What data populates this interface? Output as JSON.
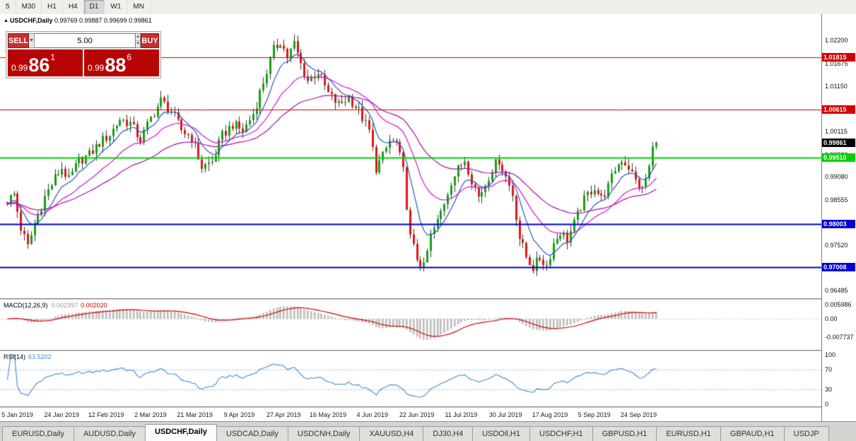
{
  "toolbar": {
    "timeframes": [
      "5",
      "M30",
      "H1",
      "H4",
      "D1",
      "W1",
      "MN"
    ],
    "active": "D1"
  },
  "icons": {
    "dropdown": "▼",
    "spin_up": "▲",
    "spin_down": "▼",
    "symbol_marker": "▲"
  },
  "trade_panel": {
    "sell_label": "SELL",
    "buy_label": "BUY",
    "volume": "5.00",
    "sell_price": {
      "prefix": "0.99",
      "big": "86",
      "sup": "1"
    },
    "buy_price": {
      "prefix": "0.99",
      "big": "88",
      "sup": "6"
    }
  },
  "tabs": {
    "items": [
      "EURUSD,Daily",
      "AUDUSD,Daily",
      "USDCHF,Daily",
      "USDCAD,Daily",
      "USDCNH,Daily",
      "XAUUSD,H4",
      "DJ30,H4",
      "USDOil,H1",
      "USDCHF,H1",
      "GBPUSD,H1",
      "EURUSD,H1",
      "GBPAUD,H1",
      "USDJP"
    ],
    "active_index": 2
  },
  "chart_data": [
    {
      "type": "candlestick",
      "title_icon": "▲",
      "symbol": "USDCHF,Daily",
      "ohlc_text": "0.99769 0.99887 0.99699 0.99861",
      "open": 0.99769,
      "high": 0.99887,
      "low": 0.99699,
      "close": 0.99861,
      "num_candles": 191,
      "price_top": 1.028,
      "price_bottom": 0.963,
      "anchors": [
        [
          0,
          0.9853
        ],
        [
          2,
          0.9868
        ],
        [
          4,
          0.979
        ],
        [
          6,
          0.9748
        ],
        [
          8,
          0.98
        ],
        [
          11,
          0.9862
        ],
        [
          14,
          0.9905
        ],
        [
          16,
          0.9928
        ],
        [
          18,
          0.99
        ],
        [
          21,
          0.9945
        ],
        [
          24,
          0.9958
        ],
        [
          27,
          0.9985
        ],
        [
          30,
          1.0005
        ],
        [
          33,
          1.004
        ],
        [
          36,
          1.003
        ],
        [
          39,
          0.9992
        ],
        [
          42,
          1.0042
        ],
        [
          45,
          1.0082
        ],
        [
          48,
          1.0058
        ],
        [
          51,
          1.0015
        ],
        [
          54,
          0.9998
        ],
        [
          57,
          0.993
        ],
        [
          60,
          0.9942
        ],
        [
          63,
          1.0002
        ],
        [
          66,
          1.0028
        ],
        [
          69,
          1.0012
        ],
        [
          72,
          1.0052
        ],
        [
          75,
          1.0125
        ],
        [
          78,
          1.0198
        ],
        [
          80,
          1.0218
        ],
        [
          82,
          1.0182
        ],
        [
          84,
          1.0212
        ],
        [
          86,
          1.0165
        ],
        [
          88,
          1.0128
        ],
        [
          91,
          1.0148
        ],
        [
          94,
          1.0098
        ],
        [
          97,
          1.0072
        ],
        [
          100,
          1.009
        ],
        [
          103,
          1.0058
        ],
        [
          106,
          1.0012
        ],
        [
          108,
          0.9928
        ],
        [
          110,
          0.9955
        ],
        [
          112,
          0.999
        ],
        [
          114,
          0.9985
        ],
        [
          116,
          0.992
        ],
        [
          118,
          0.9768
        ],
        [
          120,
          0.9722
        ],
        [
          122,
          0.97
        ],
        [
          124,
          0.9772
        ],
        [
          126,
          0.9805
        ],
        [
          128,
          0.985
        ],
        [
          130,
          0.9898
        ],
        [
          132,
          0.9925
        ],
        [
          134,
          0.9948
        ],
        [
          136,
          0.9902
        ],
        [
          138,
          0.9862
        ],
        [
          140,
          0.989
        ],
        [
          142,
          0.9928
        ],
        [
          144,
          0.9946
        ],
        [
          146,
          0.9908
        ],
        [
          148,
          0.9868
        ],
        [
          150,
          0.9768
        ],
        [
          152,
          0.9725
        ],
        [
          154,
          0.97
        ],
        [
          156,
          0.9722
        ],
        [
          158,
          0.9705
        ],
        [
          160,
          0.9755
        ],
        [
          162,
          0.9782
        ],
        [
          164,
          0.9765
        ],
        [
          166,
          0.98
        ],
        [
          168,
          0.984
        ],
        [
          170,
          0.9868
        ],
        [
          172,
          0.9885
        ],
        [
          174,
          0.9858
        ],
        [
          176,
          0.9885
        ],
        [
          178,
          0.9925
        ],
        [
          180,
          0.9948
        ],
        [
          182,
          0.993
        ],
        [
          184,
          0.9898
        ],
        [
          186,
          0.9878
        ],
        [
          188,
          0.993
        ],
        [
          189,
          0.9977
        ],
        [
          190,
          0.99861
        ]
      ],
      "x_labels": [
        "5 Jan 2019",
        "24 Jan 2019",
        "12 Feb 2019",
        "2 Mar 2019",
        "21 Mar 2019",
        "9 Apr 2019",
        "27 Apr 2019",
        "16 May 2019",
        "4 Jun 2019",
        "22 Jun 2019",
        "11 Jul 2019",
        "30 Jul 2019",
        "17 Aug 2019",
        "5 Sep 2019",
        "24 Sep 2019"
      ],
      "label_indices": [
        3,
        16,
        29,
        42,
        55,
        68,
        81,
        94,
        107,
        120,
        133,
        146,
        159,
        172,
        185
      ],
      "y_ticks": [
        {
          "v": 1.022,
          "label": "1.02200"
        },
        {
          "v": 1.01675,
          "label": "1.01675"
        },
        {
          "v": 1.0115,
          "label": "1.01150"
        },
        {
          "v": 1.00115,
          "label": "1.00115"
        },
        {
          "v": 0.9958,
          "label": "0.99580"
        },
        {
          "v": 0.9908,
          "label": "0.99080"
        },
        {
          "v": 0.98555,
          "label": "0.98555"
        },
        {
          "v": 0.9752,
          "label": "0.97520"
        },
        {
          "v": 0.96485,
          "label": "0.96485"
        }
      ],
      "hlines": [
        {
          "price": 1.01815,
          "label": "1.01815",
          "color": "#d40000",
          "width": 1
        },
        {
          "price": 1.00615,
          "label": "1.00615",
          "color": "#d40000",
          "width": 1
        },
        {
          "price": 0.9951,
          "label": "0.99510",
          "color": "#00d200",
          "width": 2
        },
        {
          "price": 0.98003,
          "label": "0.98003",
          "color": "#0000d2",
          "width": 2
        },
        {
          "price": 0.97008,
          "label": "0.97008",
          "color": "#0000d2",
          "width": 2
        }
      ],
      "current": {
        "price": 0.99861,
        "label": "0.99861",
        "color": "#000000"
      },
      "moving_averages": [
        {
          "period": 8,
          "color": "#2b54c0"
        },
        {
          "period": 21,
          "color": "#d813d8"
        },
        {
          "period": 45,
          "color": "#a510a5"
        }
      ],
      "up_color": "#11a311",
      "down_color": "#e01515",
      "wick_color": "#353535"
    },
    {
      "type": "macd",
      "label": "MACD(12,26,9)",
      "value_main": "0.002397",
      "value_signal": "0.002020",
      "params": {
        "fast": 12,
        "slow": 26,
        "signal": 9
      },
      "y_ticks": [
        {
          "v": 0.005986,
          "label": "0.005986"
        },
        {
          "v": 0.0,
          "label": "0.00"
        },
        {
          "v": -0.007737,
          "label": "-0.007737"
        }
      ],
      "hist_color": "#bdbdbd",
      "signal_color": "#d40000"
    },
    {
      "type": "rsi",
      "label": "RSI(14)",
      "value": "63.5202",
      "period": 14,
      "levels": [
        {
          "v": 100,
          "label": "100",
          "dashed": false
        },
        {
          "v": 70,
          "label": "70",
          "dashed": true
        },
        {
          "v": 30,
          "label": "30",
          "dashed": true
        },
        {
          "v": 0,
          "label": "0",
          "dashed": false
        }
      ],
      "line_color": "#3d8bd4"
    }
  ]
}
